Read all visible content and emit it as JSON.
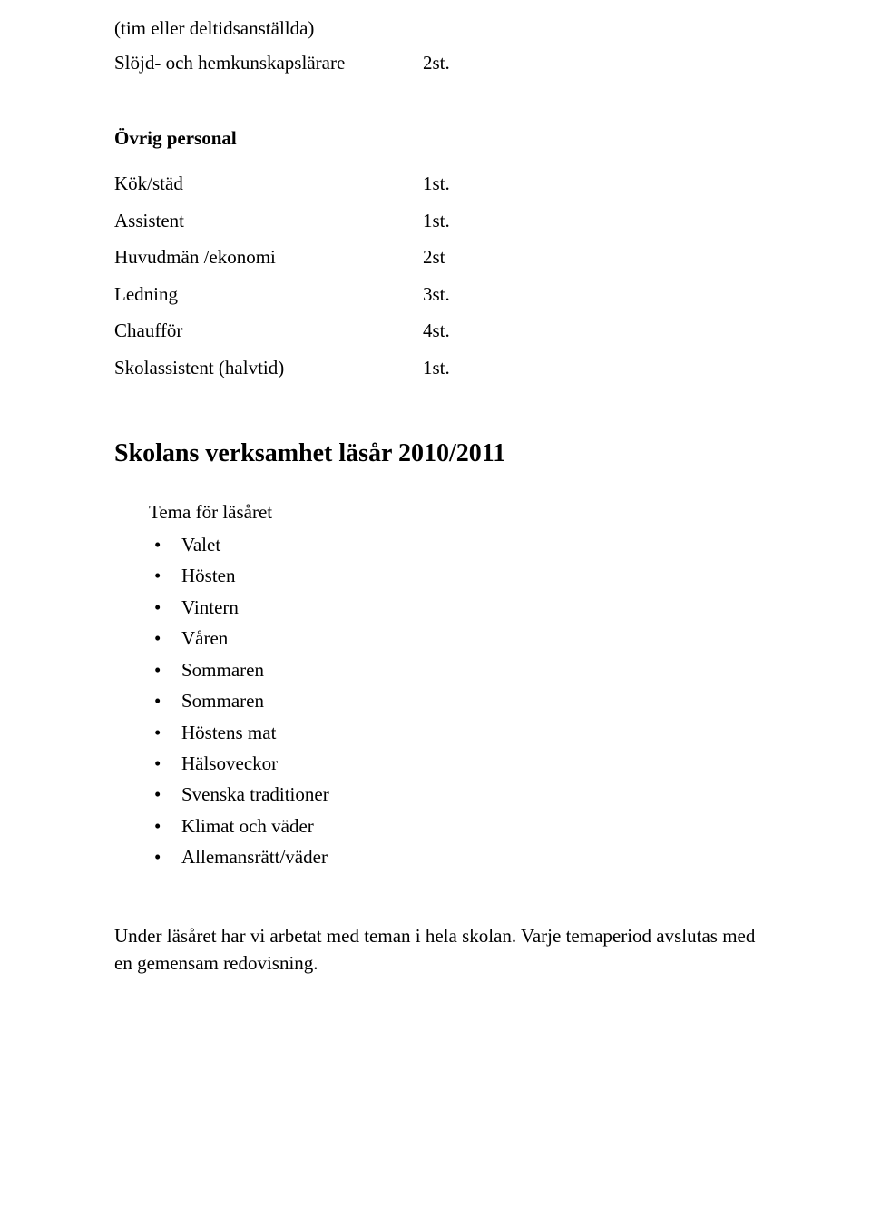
{
  "intro": {
    "line1": "(tim eller deltidsanställda)",
    "slojd_label": "Slöjd- och hemkunskapslärare",
    "slojd_value": "2st."
  },
  "ovrig_personal": {
    "title": "Övrig personal",
    "rows": [
      {
        "label": "Kök/städ",
        "value": "1st."
      },
      {
        "label": "Assistent",
        "value": "1st."
      },
      {
        "label": "Huvudmän /ekonomi",
        "value": "2st"
      },
      {
        "label": "Ledning",
        "value": "3st."
      },
      {
        "label": "Chaufför",
        "value": "4st."
      },
      {
        "label": "Skolassistent (halvtid)",
        "value": "1st."
      }
    ]
  },
  "verksamhet": {
    "heading": "Skolans verksamhet läsår 2010/2011",
    "tema_intro": "Tema för läsåret",
    "items": [
      "Valet",
      "Hösten",
      "Vintern",
      "Våren",
      "Sommaren",
      "Sommaren",
      "Höstens mat",
      "Hälsoveckor",
      "Svenska traditioner",
      "Klimat och väder",
      "Allemansrätt/väder"
    ]
  },
  "closing_para": "Under läsåret har vi arbetat med teman i hela skolan. Varje temaperiod avslutas med en gemensam redovisning."
}
